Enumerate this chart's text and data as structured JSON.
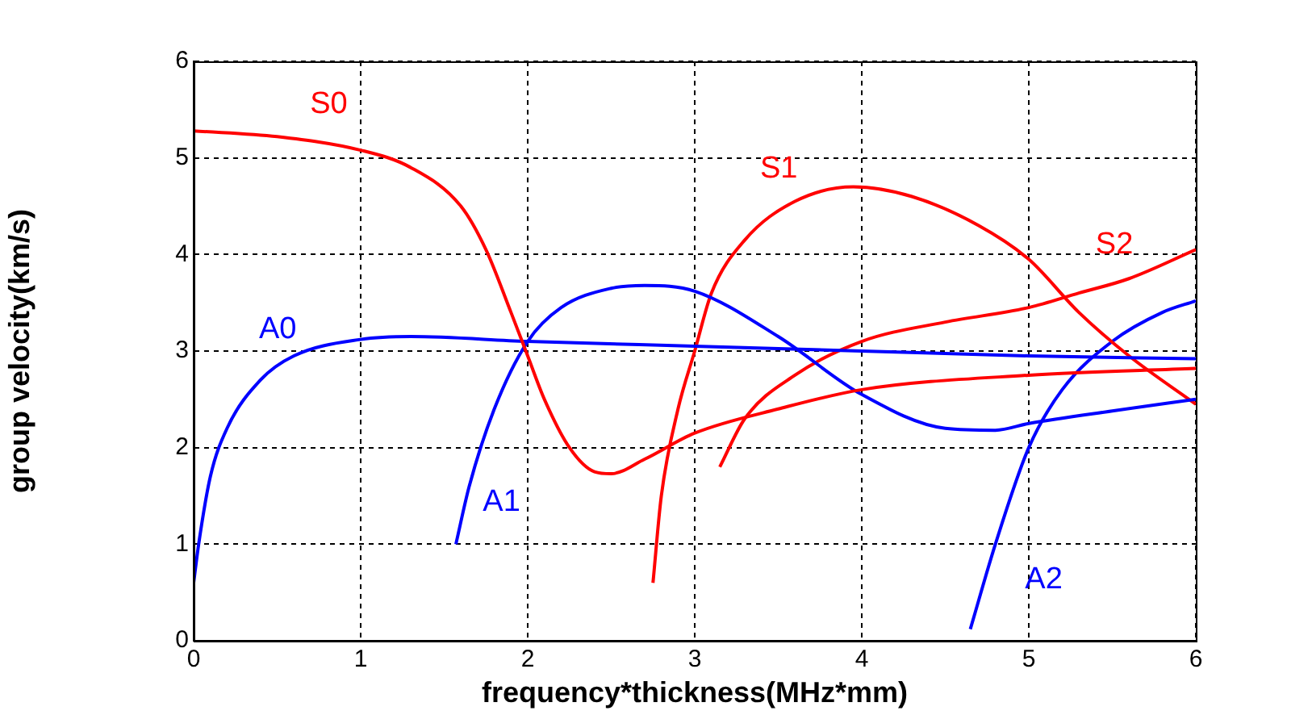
{
  "chart_data": {
    "type": "line",
    "xlabel": "frequency*thickness(MHz*mm)",
    "ylabel": "group velocity(km/s)",
    "xlim": [
      0,
      6
    ],
    "xticks": [
      0,
      1,
      2,
      3,
      4,
      5,
      6
    ],
    "ylim": [
      0,
      6
    ],
    "yticks": [
      0,
      1,
      2,
      3,
      4,
      5,
      6
    ],
    "grid": true,
    "legend": false,
    "marker": "none",
    "line_style": "solid",
    "series": [
      {
        "name": "S0",
        "color": "#ff0000",
        "x": [
          0,
          0.5,
          1,
          1.3,
          1.6,
          1.75,
          1.9,
          2.0,
          2.1,
          2.25,
          2.4,
          2.5,
          2.7,
          3,
          3.5,
          4,
          5,
          6
        ],
        "values": [
          5.28,
          5.22,
          5.08,
          4.9,
          4.5,
          4.05,
          3.4,
          2.95,
          2.5,
          2.0,
          1.75,
          1.73,
          1.88,
          2.15,
          2.4,
          2.6,
          2.75,
          2.82
        ]
      },
      {
        "name": "A0",
        "color": "#0000ff",
        "x": [
          0,
          0.03,
          0.1,
          0.2,
          0.4,
          0.6,
          1,
          1.3,
          2,
          3,
          4,
          5,
          6
        ],
        "values": [
          0.6,
          1.0,
          1.7,
          2.2,
          2.7,
          2.95,
          3.12,
          3.15,
          3.1,
          3.05,
          3.0,
          2.95,
          2.92
        ]
      },
      {
        "name": "A1",
        "color": "#0000ff",
        "x": [
          1.57,
          1.65,
          1.8,
          2,
          2.2,
          2.5,
          2.7,
          3,
          3.5,
          4,
          4.5,
          4.8,
          5,
          5.5,
          6
        ],
        "values": [
          1.0,
          1.6,
          2.4,
          3.1,
          3.45,
          3.65,
          3.68,
          3.62,
          3.15,
          2.55,
          2.2,
          2.18,
          2.25,
          2.38,
          2.5
        ]
      },
      {
        "name": "S1",
        "color": "#ff0000",
        "x": [
          2.75,
          2.8,
          2.9,
          3.0,
          3.1,
          3.3,
          3.6,
          3.95,
          4.3,
          4.7,
          5.0,
          5.3,
          5.6,
          6
        ],
        "values": [
          0.6,
          1.5,
          2.4,
          3.0,
          3.6,
          4.15,
          4.55,
          4.7,
          4.6,
          4.3,
          3.95,
          3.4,
          2.95,
          2.45
        ]
      },
      {
        "name": "S2",
        "color": "#ff0000",
        "x": [
          3.15,
          3.3,
          3.6,
          4,
          4.5,
          5,
          5.3,
          5.6,
          6
        ],
        "values": [
          1.8,
          2.3,
          2.75,
          3.1,
          3.3,
          3.45,
          3.6,
          3.75,
          4.05
        ]
      },
      {
        "name": "A2",
        "color": "#0000ff",
        "x": [
          4.65,
          4.8,
          5.0,
          5.2,
          5.5,
          5.8,
          6
        ],
        "values": [
          0.12,
          1.0,
          2.0,
          2.6,
          3.1,
          3.4,
          3.52
        ]
      }
    ]
  }
}
